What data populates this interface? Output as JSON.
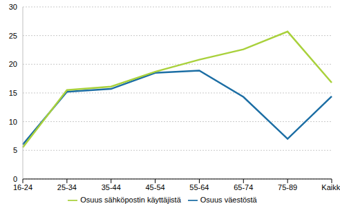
{
  "chart_data": {
    "type": "line",
    "categories": [
      "16-24",
      "25-34",
      "35-44",
      "45-54",
      "55-64",
      "65-74",
      "75-89",
      "Kaikki"
    ],
    "series": [
      {
        "name": "Osuus väestöstä",
        "color": "#1c6ea4",
        "values": [
          6,
          15.2,
          15.7,
          18.5,
          18.9,
          14.3,
          7,
          14.4
        ]
      },
      {
        "name": "Osuus sähköpostin käyttäjistä",
        "color": "#a9d13c",
        "values": [
          5.5,
          15.5,
          16.1,
          18.7,
          20.8,
          22.6,
          25.7,
          16.8
        ]
      }
    ],
    "ylim": [
      0,
      30
    ],
    "yticks": [
      0,
      5,
      10,
      15,
      20,
      25,
      30
    ],
    "grid": true,
    "legend": "bottom"
  }
}
